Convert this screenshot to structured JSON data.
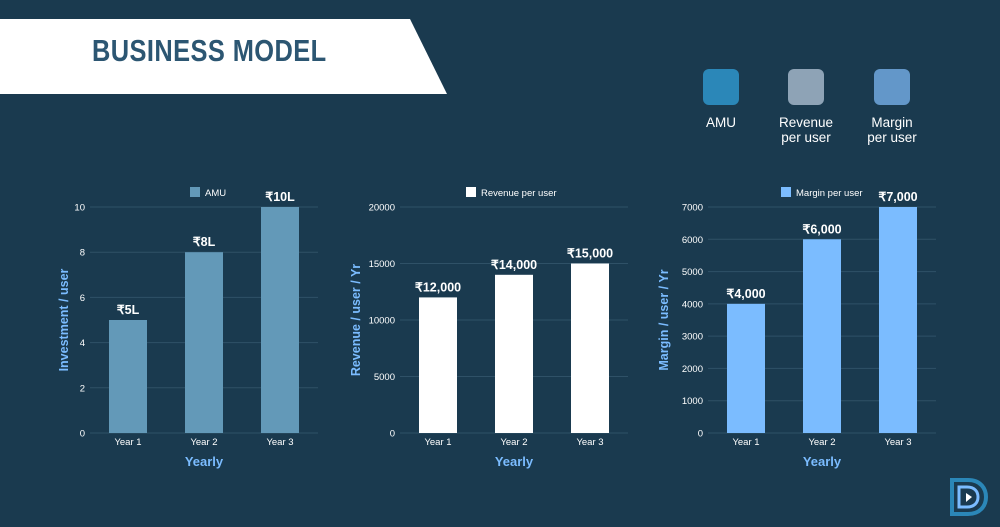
{
  "header": {
    "title": "BUSINESS MODEL"
  },
  "legend": [
    {
      "label_line1": "AMU",
      "label_line2": "",
      "color": "#2b87b8"
    },
    {
      "label_line1": "Revenue",
      "label_line2": "per user",
      "color": "#8ea3b6"
    },
    {
      "label_line1": "Margin",
      "label_line2": "per user",
      "color": "#6397c9"
    }
  ],
  "chart_data": [
    {
      "type": "bar",
      "categories": [
        "Year 1",
        "Year 2",
        "Year 3"
      ],
      "series": [
        {
          "name": "AMU",
          "values": [
            5,
            8,
            10
          ]
        }
      ],
      "data_labels": [
        "₹5L",
        "₹8L",
        "₹10L"
      ],
      "xlabel": "Yearly",
      "ylabel": "Investment  / user",
      "ylim": [
        0,
        10
      ],
      "yticks": [
        0,
        2,
        4,
        6,
        8,
        10
      ],
      "color": "#6399b8",
      "legend_swatch_color": "#6399b8",
      "grid": true,
      "legend_position": "top"
    },
    {
      "type": "bar",
      "categories": [
        "Year 1",
        "Year 2",
        "Year 3"
      ],
      "series": [
        {
          "name": "Revenue per user",
          "values": [
            12000,
            14000,
            15000
          ]
        }
      ],
      "data_labels": [
        "₹12,000",
        "₹14,000",
        "₹15,000"
      ],
      "xlabel": "Yearly",
      "ylabel": "Revenue / user / Yr",
      "ylim": [
        0,
        20000
      ],
      "yticks": [
        0,
        5000,
        10000,
        15000,
        20000
      ],
      "color": "#ffffff",
      "legend_swatch_color": "#ffffff",
      "grid": true,
      "legend_position": "top"
    },
    {
      "type": "bar",
      "categories": [
        "Year 1",
        "Year 2",
        "Year 3"
      ],
      "series": [
        {
          "name": "Margin per user",
          "values": [
            4000,
            6000,
            7000
          ]
        }
      ],
      "data_labels": [
        "₹4,000",
        "₹6,000",
        "₹7,000"
      ],
      "xlabel": "Yearly",
      "ylabel": "Margin / user / Yr",
      "ylim": [
        0,
        7000
      ],
      "yticks": [
        0,
        1000,
        2000,
        3000,
        4000,
        5000,
        6000,
        7000
      ],
      "color": "#7bbcff",
      "legend_swatch_color": "#7bbcff",
      "grid": true,
      "legend_position": "top"
    }
  ]
}
